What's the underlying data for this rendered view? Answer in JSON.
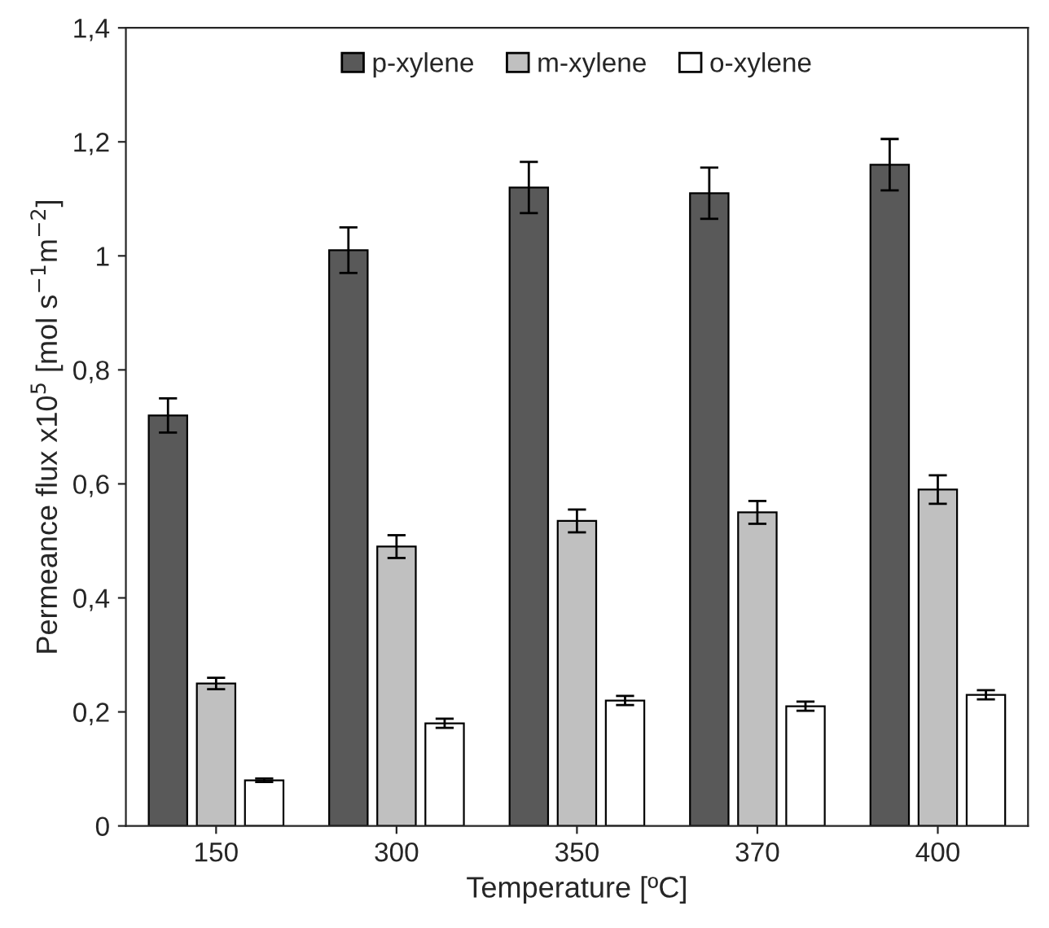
{
  "chart_data": {
    "type": "bar",
    "xlabel": "Temperature [ºC]",
    "ylabel": "Permeance flux x10$^{5}$ [mol s$^{−1}$m$^{−2}$]",
    "categories": [
      "150",
      "300",
      "350",
      "370",
      "400"
    ],
    "series": [
      {
        "name": "p-xylene",
        "color": "#595959",
        "values": [
          0.72,
          1.01,
          1.12,
          1.11,
          1.16
        ],
        "errors": [
          0.03,
          0.04,
          0.045,
          0.045,
          0.045
        ]
      },
      {
        "name": "m-xylene",
        "color": "#c0c0c0",
        "values": [
          0.25,
          0.49,
          0.535,
          0.55,
          0.59
        ],
        "errors": [
          0.01,
          0.02,
          0.02,
          0.02,
          0.025
        ]
      },
      {
        "name": "o-xylene",
        "color": "#ffffff",
        "values": [
          0.08,
          0.18,
          0.22,
          0.21,
          0.23
        ],
        "errors": [
          0.003,
          0.008,
          0.008,
          0.008,
          0.008
        ]
      }
    ],
    "ylim": [
      0,
      1.4
    ],
    "yticks": [
      0,
      {
        "value": 0.2,
        "label": "0,2"
      },
      {
        "value": 0.4,
        "label": "0,4"
      },
      {
        "value": 0.6,
        "label": "0,6"
      },
      {
        "value": 0.8,
        "label": "0,8"
      },
      1,
      {
        "value": 1.2,
        "label": "1,2"
      },
      {
        "value": 1.4,
        "label": "1,4"
      }
    ],
    "grid": false,
    "legend": "top"
  }
}
